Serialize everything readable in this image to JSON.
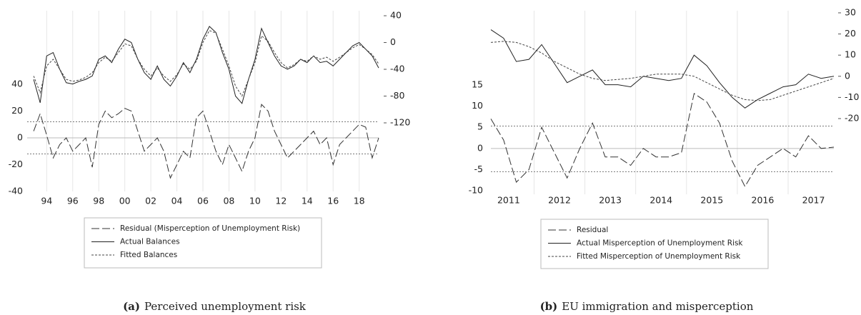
{
  "chart_data": [
    {
      "type": "line",
      "caption_label": "(a)",
      "caption": "Perceived unemployment risk",
      "x": [
        1993,
        1993.5,
        1994,
        1994.5,
        1995,
        1995.5,
        1996,
        1996.5,
        1997,
        1997.5,
        1998,
        1998.5,
        1999,
        1999.5,
        2000,
        2000.5,
        2001,
        2001.5,
        2002,
        2002.5,
        2003,
        2003.5,
        2004,
        2004.5,
        2005,
        2005.5,
        2006,
        2006.5,
        2007,
        2007.5,
        2008,
        2008.5,
        2009,
        2009.5,
        2010,
        2010.5,
        2011,
        2011.5,
        2012,
        2012.5,
        2013,
        2013.5,
        2014,
        2014.5,
        2015,
        2015.5,
        2016,
        2016.5,
        2017,
        2017.5,
        2018,
        2018.5,
        2019,
        2019.5
      ],
      "series": [
        {
          "name": "Residual (Misperception of Unemployment Risk)",
          "color": "#333333",
          "dash": "long-dash",
          "values": [
            5,
            18,
            2,
            -15,
            -5,
            0,
            -10,
            -5,
            0,
            -22,
            10,
            20,
            15,
            18,
            22,
            20,
            5,
            -10,
            -5,
            0,
            -10,
            -30,
            -20,
            -10,
            -15,
            15,
            20,
            5,
            -10,
            -20,
            -5,
            -15,
            -25,
            -10,
            0,
            25,
            20,
            5,
            -5,
            -15,
            -10,
            -5,
            0,
            5,
            -5,
            0,
            -20,
            -5,
            0,
            5,
            10,
            8,
            -15,
            0
          ]
        },
        {
          "name": "Actual Balances",
          "color": "#222222",
          "dash": "solid",
          "axis": "y2",
          "values": [
            -55,
            -90,
            -20,
            -15,
            -40,
            -60,
            -62,
            -58,
            -55,
            -50,
            -25,
            -20,
            -30,
            -10,
            5,
            0,
            -25,
            -45,
            -55,
            -35,
            -55,
            -65,
            -50,
            -30,
            -45,
            -25,
            5,
            24,
            15,
            -15,
            -40,
            -80,
            -91,
            -55,
            -25,
            21,
            0,
            -20,
            -35,
            -40,
            -35,
            -25,
            -30,
            -20,
            -30,
            -28,
            -35,
            -25,
            -15,
            -5,
            0,
            -10,
            -20,
            -38
          ]
        },
        {
          "name": "Fitted Balances",
          "color": "#444444",
          "dash": "dash",
          "axis": "y2",
          "values": [
            -50,
            -75,
            -35,
            -25,
            -40,
            -55,
            -58,
            -56,
            -52,
            -45,
            -30,
            -22,
            -28,
            -15,
            -2,
            -5,
            -25,
            -40,
            -50,
            -38,
            -50,
            -58,
            -48,
            -32,
            -40,
            -28,
            0,
            18,
            14,
            -10,
            -35,
            -65,
            -80,
            -55,
            -30,
            10,
            2,
            -15,
            -30,
            -38,
            -33,
            -25,
            -28,
            -20,
            -25,
            -22,
            -28,
            -22,
            -15,
            -8,
            -3,
            -10,
            -18,
            -32
          ]
        }
      ],
      "xlim": [
        1992.5,
        2019.5
      ],
      "xticks": [
        {
          "value": 1994,
          "label": "94"
        },
        {
          "value": 1996,
          "label": "96"
        },
        {
          "value": 1998,
          "label": "98"
        },
        {
          "value": 2000,
          "label": "00"
        },
        {
          "value": 2002,
          "label": "02"
        },
        {
          "value": 2004,
          "label": "04"
        },
        {
          "value": 2006,
          "label": "06"
        },
        {
          "value": 2008,
          "label": "08"
        },
        {
          "value": 2010,
          "label": "10"
        },
        {
          "value": 2012,
          "label": "12"
        },
        {
          "value": 2014,
          "label": "14"
        },
        {
          "value": 2016,
          "label": "16"
        },
        {
          "value": 2018,
          "label": "18"
        }
      ],
      "vlines": [
        1994,
        1996,
        1998,
        2000,
        2002,
        2004,
        2006,
        2008,
        2010,
        2012,
        2014,
        2016,
        2018
      ],
      "ylim": [
        -40,
        94.9
      ],
      "yticks": [
        40,
        20,
        0,
        -20,
        -40
      ],
      "y2lim": [
        -222.4,
        47.5
      ],
      "y2ticks": [
        40,
        0,
        -40,
        -80,
        -120
      ],
      "ref_lines": [
        12,
        -12
      ]
    },
    {
      "type": "line",
      "caption_label": "(b)",
      "caption": "EU immigration and misperception",
      "x": [
        2011.15,
        2011.4,
        2011.65,
        2011.9,
        2012.15,
        2012.4,
        2012.65,
        2012.9,
        2013.15,
        2013.4,
        2013.65,
        2013.9,
        2014.15,
        2014.4,
        2014.65,
        2014.9,
        2015.15,
        2015.4,
        2015.65,
        2015.9,
        2016.15,
        2016.4,
        2016.65,
        2016.9,
        2017.15,
        2017.4,
        2017.65,
        2017.9
      ],
      "series": [
        {
          "name": "Residual",
          "color": "#333333",
          "dash": "long-dash",
          "values": [
            7,
            2,
            -8,
            -5,
            5,
            -1,
            -7,
            0,
            6,
            -2,
            -2,
            -4,
            0,
            -2,
            -2,
            -1,
            13,
            11,
            6,
            -3,
            -9,
            -4,
            -2,
            0,
            -2,
            3,
            0,
            0.3
          ]
        },
        {
          "name": "Actual Misperception of Unemployment Risk",
          "color": "#222222",
          "dash": "solid",
          "axis": "y2",
          "values": [
            22,
            18,
            7,
            8,
            15,
            6,
            -3,
            0,
            3,
            -4,
            -4,
            -5,
            0,
            -1,
            -2,
            -1,
            10,
            5,
            -3,
            -10,
            -15,
            -11,
            -8,
            -5,
            -4,
            1,
            -1,
            0
          ]
        },
        {
          "name": "Fitted Misperception of Unemployment Risk",
          "color": "#444444",
          "dash": "dash",
          "axis": "y2",
          "values": [
            16,
            16.5,
            16,
            14,
            11,
            7,
            4,
            1,
            -1,
            -2,
            -1.5,
            -1,
            0,
            1,
            1,
            1,
            0,
            -3,
            -6,
            -9,
            -11,
            -11.5,
            -11,
            -9,
            -7,
            -5,
            -3,
            -1
          ]
        }
      ],
      "xlim": [
        2011.15,
        2017.9
      ],
      "xticks": [
        {
          "value": 2011.5,
          "label": "2011"
        },
        {
          "value": 2012.5,
          "label": "2012"
        },
        {
          "value": 2013.5,
          "label": "2013"
        },
        {
          "value": 2014.5,
          "label": "2014"
        },
        {
          "value": 2015.5,
          "label": "2015"
        },
        {
          "value": 2016.5,
          "label": "2016"
        },
        {
          "value": 2017.5,
          "label": "2017"
        }
      ],
      "vlines": [
        2012,
        2013,
        2014,
        2015,
        2016,
        2017
      ],
      "ylim": [
        -10.85,
        32.6
      ],
      "yticks": [
        15,
        10,
        5,
        0,
        -5,
        -10
      ],
      "y2lim": [
        -55.8,
        31
      ],
      "y2ticks": [
        30,
        20,
        10,
        0,
        -10,
        -20
      ],
      "ref_lines": [
        5.3,
        -5.5
      ]
    }
  ]
}
